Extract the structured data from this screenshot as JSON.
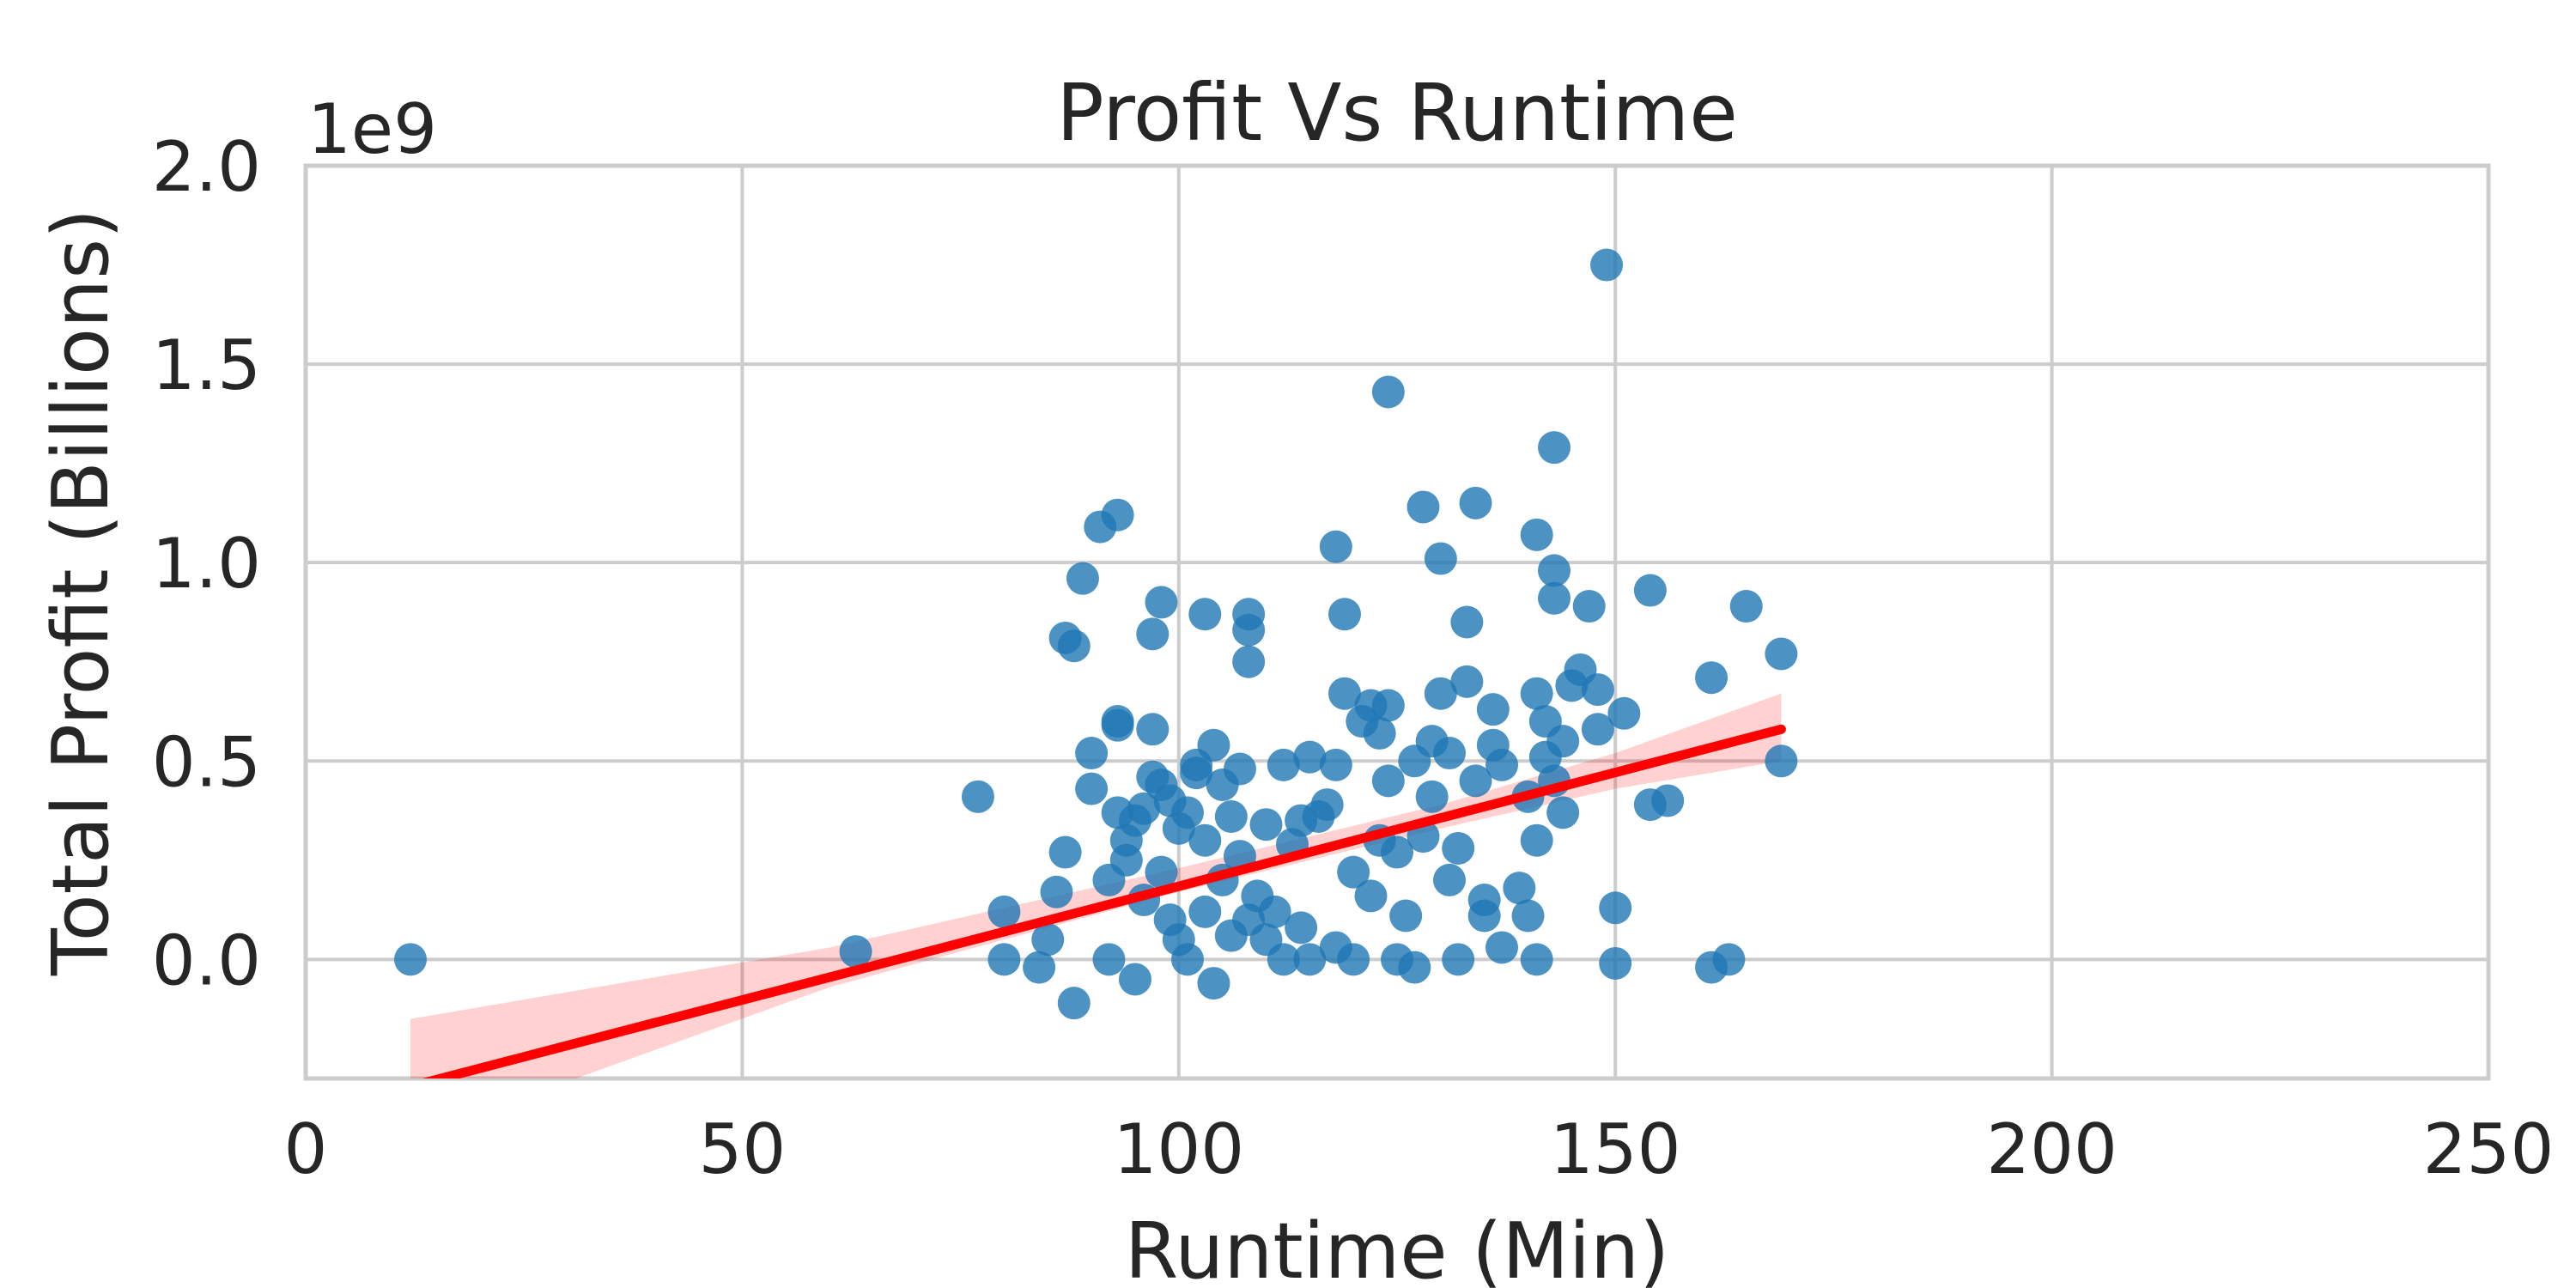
{
  "chart_data": {
    "type": "scatter",
    "title": "Profit Vs Runtime",
    "xlabel": "Runtime (Min)",
    "ylabel": "Total Profit (Billions)",
    "y_offset_label": "1e9",
    "xlim": [
      0,
      250
    ],
    "ylim": [
      -0.3,
      2.0
    ],
    "xticks": [
      0,
      50,
      100,
      150,
      200,
      250
    ],
    "xtick_labels": [
      "0",
      "50",
      "100",
      "150",
      "200",
      "250"
    ],
    "yticks": [
      0.0,
      0.5,
      1.0,
      1.5,
      2.0
    ],
    "ytick_labels": [
      "0.0",
      "0.5",
      "1.0",
      "1.5",
      "2.0"
    ],
    "grid": true,
    "colors": {
      "points": "#1f77b4",
      "fit_line": "#ff0000",
      "ci_band": "#ff0000"
    },
    "regression": {
      "x": [
        12,
        169
      ],
      "y": [
        -0.32,
        0.58
      ],
      "ci_band": [
        {
          "x": 12,
          "lower": -0.45,
          "upper": -0.15
        },
        {
          "x": 60,
          "lower": -0.07,
          "upper": 0.03
        },
        {
          "x": 100,
          "lower": 0.17,
          "upper": 0.23
        },
        {
          "x": 130,
          "lower": 0.33,
          "upper": 0.39
        },
        {
          "x": 150,
          "lower": 0.43,
          "upper": 0.52
        },
        {
          "x": 169,
          "lower": 0.5,
          "upper": 0.67
        }
      ]
    },
    "points": [
      [
        12,
        0.0
      ],
      [
        63,
        0.02
      ],
      [
        77,
        0.41
      ],
      [
        80,
        0.12
      ],
      [
        80,
        0.0
      ],
      [
        84,
        -0.02
      ],
      [
        85,
        0.05
      ],
      [
        86,
        0.17
      ],
      [
        87,
        0.27
      ],
      [
        87,
        0.81
      ],
      [
        88,
        0.79
      ],
      [
        88,
        -0.11
      ],
      [
        89,
        0.96
      ],
      [
        90,
        0.43
      ],
      [
        90,
        0.52
      ],
      [
        91,
        1.09
      ],
      [
        92,
        0.2
      ],
      [
        92,
        0.0
      ],
      [
        93,
        0.37
      ],
      [
        93,
        0.59
      ],
      [
        93,
        1.12
      ],
      [
        93,
        0.6
      ],
      [
        94,
        0.25
      ],
      [
        94,
        0.3
      ],
      [
        95,
        0.35
      ],
      [
        95,
        -0.05
      ],
      [
        96,
        0.38
      ],
      [
        96,
        0.15
      ],
      [
        97,
        0.46
      ],
      [
        97,
        0.58
      ],
      [
        97,
        0.82
      ],
      [
        98,
        0.9
      ],
      [
        98,
        0.44
      ],
      [
        98,
        0.22
      ],
      [
        99,
        0.4
      ],
      [
        99,
        0.1
      ],
      [
        100,
        0.33
      ],
      [
        100,
        0.05
      ],
      [
        101,
        0.37
      ],
      [
        101,
        0.0
      ],
      [
        102,
        0.47
      ],
      [
        102,
        0.49
      ],
      [
        103,
        0.87
      ],
      [
        103,
        0.3
      ],
      [
        103,
        0.12
      ],
      [
        104,
        0.54
      ],
      [
        104,
        -0.06
      ],
      [
        105,
        0.44
      ],
      [
        105,
        0.2
      ],
      [
        106,
        0.36
      ],
      [
        106,
        0.06
      ],
      [
        107,
        0.48
      ],
      [
        107,
        0.26
      ],
      [
        108,
        0.75
      ],
      [
        108,
        0.83
      ],
      [
        108,
        0.87
      ],
      [
        108,
        0.1
      ],
      [
        109,
        0.16
      ],
      [
        110,
        0.34
      ],
      [
        110,
        0.05
      ],
      [
        111,
        0.12
      ],
      [
        112,
        0.49
      ],
      [
        112,
        0.0
      ],
      [
        113,
        0.29
      ],
      [
        114,
        0.35
      ],
      [
        114,
        0.08
      ],
      [
        115,
        0.51
      ],
      [
        115,
        0.0
      ],
      [
        116,
        0.36
      ],
      [
        117,
        0.39
      ],
      [
        118,
        1.04
      ],
      [
        118,
        0.49
      ],
      [
        118,
        0.03
      ],
      [
        119,
        0.87
      ],
      [
        119,
        0.67
      ],
      [
        120,
        0.22
      ],
      [
        120,
        0.0
      ],
      [
        121,
        0.6
      ],
      [
        122,
        0.64
      ],
      [
        122,
        0.16
      ],
      [
        123,
        0.57
      ],
      [
        123,
        0.3
      ],
      [
        124,
        1.43
      ],
      [
        124,
        0.64
      ],
      [
        124,
        0.45
      ],
      [
        125,
        0.27
      ],
      [
        125,
        0.0
      ],
      [
        126,
        0.11
      ],
      [
        127,
        0.5
      ],
      [
        127,
        -0.02
      ],
      [
        128,
        1.14
      ],
      [
        128,
        0.31
      ],
      [
        129,
        0.41
      ],
      [
        129,
        0.55
      ],
      [
        130,
        0.67
      ],
      [
        130,
        1.01
      ],
      [
        131,
        0.52
      ],
      [
        131,
        0.2
      ],
      [
        132,
        0.28
      ],
      [
        132,
        0.0
      ],
      [
        133,
        0.85
      ],
      [
        133,
        0.7
      ],
      [
        134,
        1.15
      ],
      [
        134,
        0.45
      ],
      [
        135,
        0.11
      ],
      [
        135,
        0.15
      ],
      [
        136,
        0.63
      ],
      [
        136,
        0.54
      ],
      [
        137,
        0.49
      ],
      [
        137,
        0.03
      ],
      [
        139,
        0.18
      ],
      [
        140,
        0.11
      ],
      [
        140,
        0.41
      ],
      [
        141,
        0.67
      ],
      [
        141,
        1.07
      ],
      [
        141,
        0.3
      ],
      [
        141,
        0.0
      ],
      [
        142,
        0.6
      ],
      [
        142,
        0.51
      ],
      [
        143,
        0.45
      ],
      [
        143,
        0.91
      ],
      [
        143,
        0.98
      ],
      [
        143,
        1.29
      ],
      [
        144,
        0.55
      ],
      [
        144,
        0.37
      ],
      [
        145,
        0.69
      ],
      [
        146,
        0.73
      ],
      [
        147,
        0.89
      ],
      [
        148,
        0.68
      ],
      [
        148,
        0.58
      ],
      [
        149,
        1.75
      ],
      [
        150,
        0.13
      ],
      [
        150,
        -0.01
      ],
      [
        151,
        0.62
      ],
      [
        154,
        0.93
      ],
      [
        154,
        0.39
      ],
      [
        156,
        0.4
      ],
      [
        161,
        0.71
      ],
      [
        161,
        -0.02
      ],
      [
        163,
        0.0
      ],
      [
        165,
        0.89
      ],
      [
        169,
        0.77
      ],
      [
        169,
        0.5
      ]
    ]
  }
}
